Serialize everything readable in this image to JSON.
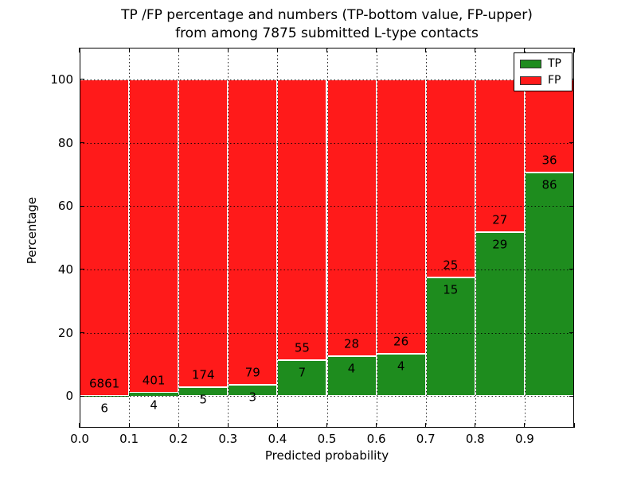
{
  "title": {
    "line1": "TP /FP percentage and numbers (TP-bottom value, FP-upper)",
    "line2": "from among 7875 submitted L-type contacts"
  },
  "axes": {
    "x_label": "Predicted probability",
    "y_label": "Percentage"
  },
  "legend": {
    "items": [
      {
        "label": "TP",
        "color": "#1e8c1e"
      },
      {
        "label": "FP",
        "color": "#ff1a1a"
      }
    ]
  },
  "colors": {
    "tp_green": "#1e8c1e",
    "fp_red": "#ff1a1a",
    "grid": "#000000"
  },
  "chart_data": {
    "type": "bar",
    "stacked": true,
    "title": "TP /FP percentage and numbers (TP-bottom value, FP-upper) from among 7875 submitted L-type contacts",
    "xlabel": "Predicted probability",
    "ylabel": "Percentage",
    "xlim": [
      0.0,
      1.0
    ],
    "ylim": [
      -10,
      110
    ],
    "grid": true,
    "legend_position": "upper right",
    "total_contacts": 7875,
    "x_ticks": [
      {
        "v": 0.0,
        "label": "0.0"
      },
      {
        "v": 0.1,
        "label": "0.1"
      },
      {
        "v": 0.2,
        "label": "0.2"
      },
      {
        "v": 0.3,
        "label": "0.3"
      },
      {
        "v": 0.4,
        "label": "0.4"
      },
      {
        "v": 0.5,
        "label": "0.5"
      },
      {
        "v": 0.6,
        "label": "0.6"
      },
      {
        "v": 0.7,
        "label": "0.7"
      },
      {
        "v": 0.8,
        "label": "0.8"
      },
      {
        "v": 0.9,
        "label": "0.9"
      },
      {
        "v": 1.0,
        "label": ""
      }
    ],
    "y_ticks": [
      {
        "v": 0,
        "label": "0"
      },
      {
        "v": 20,
        "label": "20"
      },
      {
        "v": 40,
        "label": "40"
      },
      {
        "v": 60,
        "label": "60"
      },
      {
        "v": 80,
        "label": "80"
      },
      {
        "v": 100,
        "label": "100"
      }
    ],
    "series": [
      {
        "name": "TP",
        "values": [
          6,
          4,
          5,
          3,
          7,
          4,
          4,
          15,
          29,
          86
        ]
      },
      {
        "name": "FP",
        "values": [
          6861,
          401,
          174,
          79,
          55,
          28,
          26,
          25,
          27,
          36
        ]
      }
    ],
    "bins": [
      {
        "x_start": 0.0,
        "x_end": 0.1,
        "tp": 6,
        "fp": 6861,
        "tp_pct": 0.09
      },
      {
        "x_start": 0.1,
        "x_end": 0.2,
        "tp": 4,
        "fp": 401,
        "tp_pct": 0.99
      },
      {
        "x_start": 0.2,
        "x_end": 0.3,
        "tp": 5,
        "fp": 174,
        "tp_pct": 2.79
      },
      {
        "x_start": 0.3,
        "x_end": 0.4,
        "tp": 3,
        "fp": 79,
        "tp_pct": 3.66
      },
      {
        "x_start": 0.4,
        "x_end": 0.5,
        "tp": 7,
        "fp": 55,
        "tp_pct": 11.29
      },
      {
        "x_start": 0.5,
        "x_end": 0.6,
        "tp": 4,
        "fp": 28,
        "tp_pct": 12.5
      },
      {
        "x_start": 0.6,
        "x_end": 0.7,
        "tp": 4,
        "fp": 26,
        "tp_pct": 13.33
      },
      {
        "x_start": 0.7,
        "x_end": 0.8,
        "tp": 15,
        "fp": 25,
        "tp_pct": 37.5
      },
      {
        "x_start": 0.8,
        "x_end": 0.9,
        "tp": 29,
        "fp": 27,
        "tp_pct": 51.79
      },
      {
        "x_start": 0.9,
        "x_end": 1.0,
        "tp": 86,
        "fp": 36,
        "tp_pct": 70.49
      }
    ]
  }
}
